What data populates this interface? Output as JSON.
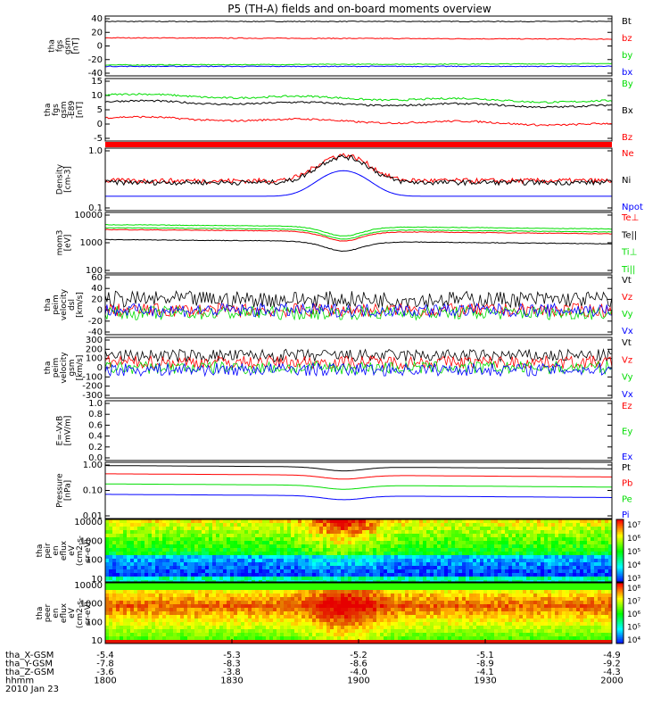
{
  "title": "P5 (TH-A) fields and on-board moments overview",
  "colors": {
    "black": "#000000",
    "red": "#ff0000",
    "green": "#00dd00",
    "blue": "#0000ff",
    "bar": "#ff0000"
  },
  "chart_data": {
    "type": "line",
    "x_tick_labels": [
      "1800",
      "1830",
      "1900",
      "1930",
      "2000"
    ],
    "x_time_axis": {
      "rows": [
        {
          "label": "tha_X-GSM",
          "values": [
            "-5.4",
            "-5.3",
            "-5.2",
            "-5.1",
            "-4.9"
          ]
        },
        {
          "label": "tha_Y-GSM",
          "values": [
            "-7.8",
            "-8.3",
            "-8.6",
            "-8.9",
            "-9.2"
          ]
        },
        {
          "label": "tha_Z-GSM",
          "values": [
            "-3.6",
            "-3.8",
            "-4.0",
            "-4.1",
            "-4.3"
          ]
        },
        {
          "label": "hhmm",
          "values": [
            "1800",
            "1830",
            "1900",
            "1930",
            "2000"
          ]
        }
      ],
      "date": "2010 Jan 23"
    },
    "panels": [
      {
        "id": "fgs",
        "ylabel": [
          "tha",
          "fgs",
          "gsm",
          "[nT]"
        ],
        "yticks": [
          "40",
          "20",
          "0",
          "-20",
          "-40"
        ],
        "ylim": [
          -40,
          40
        ],
        "series": [
          {
            "name": "Bt",
            "color": "black",
            "start": 36,
            "end": 36
          },
          {
            "name": "bz",
            "color": "red",
            "start": 12,
            "end": 10
          },
          {
            "name": "by",
            "color": "green",
            "start": -28,
            "end": -26
          },
          {
            "name": "bx",
            "color": "blue",
            "start": -30,
            "end": -30
          }
        ]
      },
      {
        "id": "fgs_dsl",
        "ylabel": [
          "tha",
          "fgs",
          "gsm",
          "-E89",
          "[nT]"
        ],
        "yticks": [
          "15",
          "10",
          "5",
          "0",
          "-5"
        ],
        "ylim": [
          -8,
          17
        ],
        "series": [
          {
            "name": "By",
            "color": "green",
            "start": 11,
            "end": 8
          },
          {
            "name": "Bx",
            "color": "black",
            "start": 8,
            "end": 6
          },
          {
            "name": "Bz",
            "color": "red",
            "start": 1,
            "end": -2
          }
        ]
      },
      {
        "id": "density",
        "ylabel": [
          "Density",
          "[cm-3]"
        ],
        "yticks": [
          "1.0",
          "0.1"
        ],
        "ylim": [
          0.1,
          1.0
        ],
        "log": true,
        "series": [
          {
            "name": "Ne",
            "color": "red"
          },
          {
            "name": "Ni",
            "color": "black"
          },
          {
            "name": "Npot",
            "color": "blue"
          }
        ]
      },
      {
        "id": "temperature",
        "ylabel": [
          "mom3",
          "[eV]"
        ],
        "yticks": [
          "10000",
          "1000",
          "100"
        ],
        "ylim": [
          100,
          10000
        ],
        "log": true,
        "series": [
          {
            "name": "Te⊥",
            "color": "red"
          },
          {
            "name": "Te||",
            "color": "black"
          },
          {
            "name": "Ti⊥",
            "color": "green"
          },
          {
            "name": "Ti||",
            "color": "green"
          }
        ]
      },
      {
        "id": "velocity_e",
        "ylabel": [
          "tha",
          "peim",
          "velocity",
          "dsl",
          "[km/s]"
        ],
        "yticks": [
          "60",
          "40",
          "20",
          "0",
          "-20",
          "-40"
        ],
        "ylim": [
          -40,
          60
        ],
        "series": [
          {
            "name": "Vt",
            "color": "black"
          },
          {
            "name": "Vz",
            "color": "red"
          },
          {
            "name": "Vy",
            "color": "green"
          },
          {
            "name": "Vx",
            "color": "blue"
          }
        ]
      },
      {
        "id": "velocity_gsm",
        "ylabel": [
          "tha",
          "peim",
          "velocity",
          "gsm",
          "[km/s]"
        ],
        "yticks": [
          "300",
          "200",
          "100",
          "0",
          "-100",
          "-200",
          "-300"
        ],
        "ylim": [
          -300,
          300
        ],
        "series": [
          {
            "name": "Vt",
            "color": "black"
          },
          {
            "name": "Vz",
            "color": "red"
          },
          {
            "name": "Vy",
            "color": "green"
          },
          {
            "name": "Vx",
            "color": "blue"
          }
        ]
      },
      {
        "id": "efield",
        "ylabel": [
          "E=-VxB",
          "[mV/m]"
        ],
        "yticks": [
          "1.0",
          "0.8",
          "0.6",
          "0.4",
          "0.2",
          "0.0"
        ],
        "ylim": [
          0,
          1
        ],
        "series": [
          {
            "name": "Ez",
            "color": "red"
          },
          {
            "name": "Ey",
            "color": "green"
          },
          {
            "name": "Ex",
            "color": "blue"
          }
        ]
      },
      {
        "id": "pressure",
        "ylabel": [
          "Pressure",
          "[nPa]"
        ],
        "yticks": [
          "1.00",
          "0.10",
          "0.01"
        ],
        "ylim": [
          0.01,
          1.0
        ],
        "log": true,
        "series": [
          {
            "name": "Pt",
            "color": "black"
          },
          {
            "name": "Pb",
            "color": "red"
          },
          {
            "name": "Pe",
            "color": "green"
          },
          {
            "name": "Pi",
            "color": "blue"
          }
        ]
      },
      {
        "id": "ion_spec",
        "ylabel": [
          "tha",
          "peir",
          "en",
          "eflux",
          "eV",
          "(cm2-s-",
          "sr-eV)"
        ],
        "yticks": [
          "10000",
          "1000",
          "100",
          "10"
        ],
        "colorbar": [
          "10⁷",
          "10⁶",
          "10⁵",
          "10⁴",
          "10³"
        ]
      },
      {
        "id": "ele_spec",
        "ylabel": [
          "tha",
          "peer",
          "en",
          "eflux",
          "eV",
          "(cm2-s-",
          "sr-eV)"
        ],
        "yticks": [
          "10000",
          "1000",
          "100",
          "10"
        ],
        "colorbar": [
          "10⁸",
          "10⁷",
          "10⁶",
          "10⁵",
          "10⁴"
        ]
      }
    ]
  }
}
